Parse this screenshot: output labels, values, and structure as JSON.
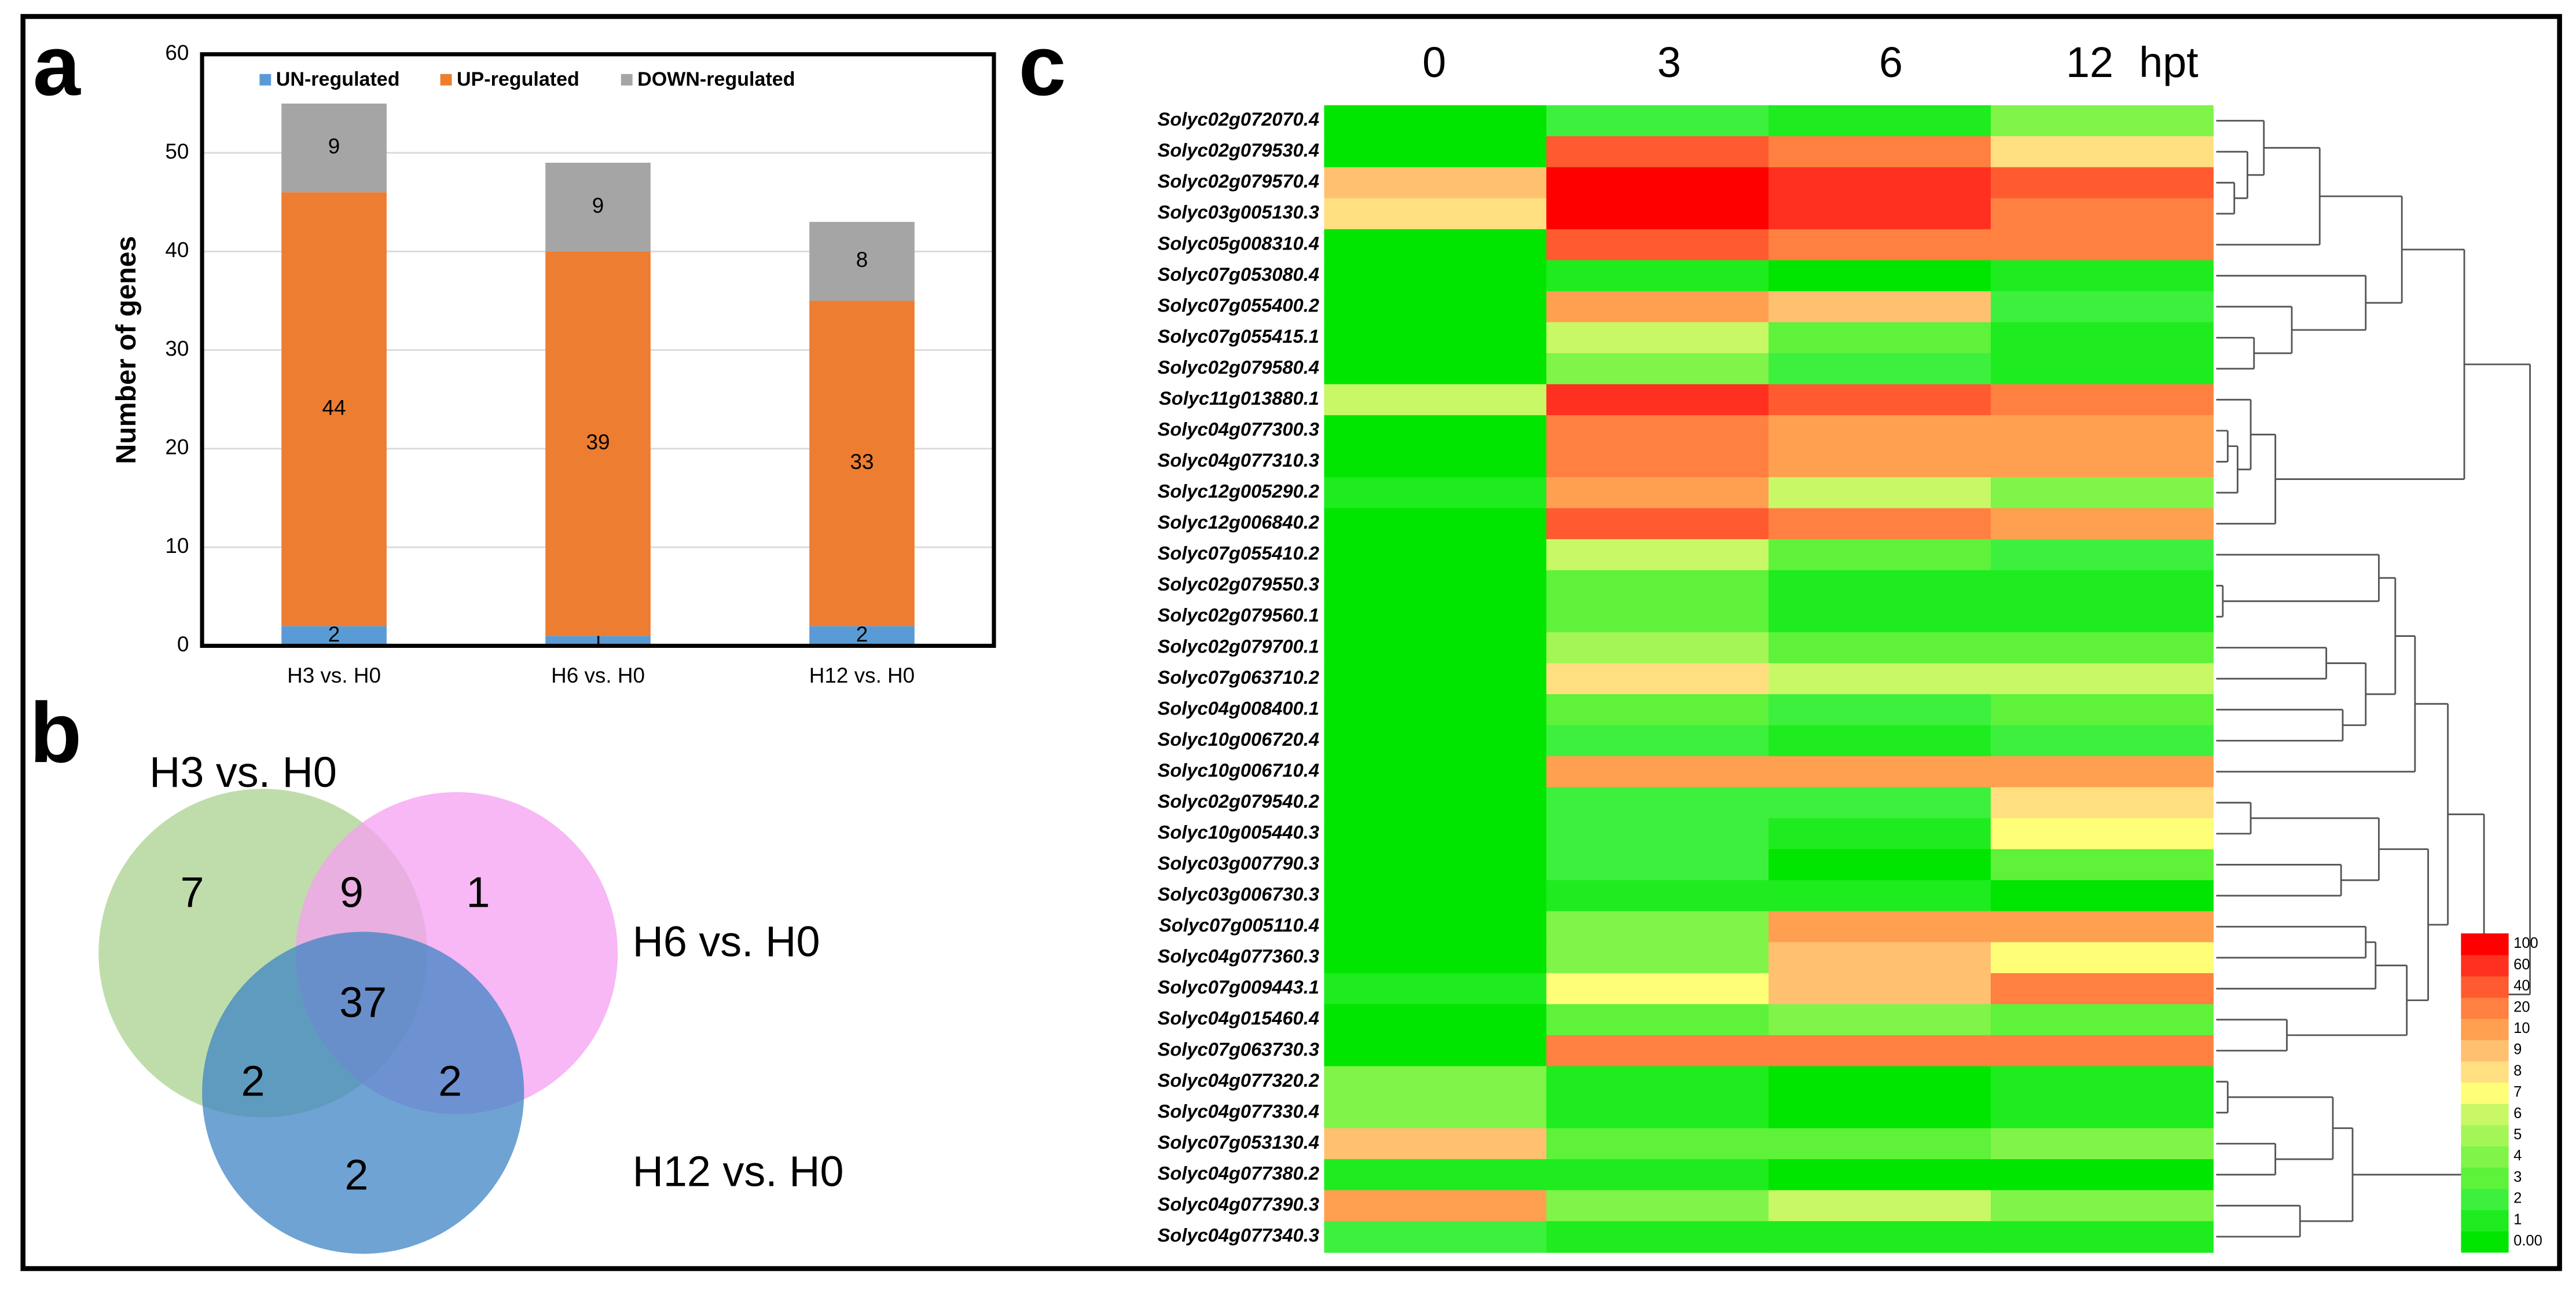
{
  "chart_data": [
    {
      "type": "bar",
      "panel": "a",
      "ylabel": "Number of genes",
      "categories": [
        "H3 vs. H0",
        "H6 vs. H0",
        "H12 vs. H0"
      ],
      "series": [
        {
          "name": "UN-regulated",
          "color": "#5b9bd5",
          "values": [
            2,
            1,
            2
          ]
        },
        {
          "name": "UP-regulated",
          "color": "#ed7d31",
          "values": [
            44,
            39,
            33
          ]
        },
        {
          "name": "DOWN-regulated",
          "color": "#a5a5a5",
          "values": [
            9,
            9,
            8
          ]
        }
      ],
      "ylim": [
        0,
        60
      ],
      "yticks": [
        0,
        10,
        20,
        30,
        40,
        50,
        60
      ],
      "grid": true,
      "stacked": true
    },
    {
      "type": "venn",
      "panel": "b",
      "sets": [
        {
          "name": "H3 vs. H0",
          "color": "#a9d18e"
        },
        {
          "name": "H6 vs. H0",
          "color": "#f59ff2"
        },
        {
          "name": "H12 vs. H0",
          "color": "#3f84c4"
        }
      ],
      "regions": [
        {
          "sets": [
            0
          ],
          "value": 7
        },
        {
          "sets": [
            1
          ],
          "value": 1
        },
        {
          "sets": [
            2
          ],
          "value": 2
        },
        {
          "sets": [
            0,
            1
          ],
          "value": 9
        },
        {
          "sets": [
            0,
            2
          ],
          "value": 2
        },
        {
          "sets": [
            1,
            2
          ],
          "value": 2
        },
        {
          "sets": [
            0,
            1,
            2
          ],
          "value": 37
        }
      ]
    },
    {
      "type": "heatmap",
      "panel": "c",
      "columns": [
        "0",
        "3",
        "6",
        "12"
      ],
      "column_unit": "hpt",
      "rows": [
        "Solyc02g072070.4",
        "Solyc02g079530.4",
        "Solyc02g079570.4",
        "Solyc03g005130.3",
        "Solyc05g008310.4",
        "Solyc07g053080.4",
        "Solyc07g055400.2",
        "Solyc07g055415.1",
        "Solyc02g079580.4",
        "Solyc11g013880.1",
        "Solyc04g077300.3",
        "Solyc04g077310.3",
        "Solyc12g005290.2",
        "Solyc12g006840.2",
        "Solyc07g055410.2",
        "Solyc02g079550.3",
        "Solyc02g079560.1",
        "Solyc02g079700.1",
        "Solyc07g063710.2",
        "Solyc04g008400.1",
        "Solyc10g006720.4",
        "Solyc10g006710.4",
        "Solyc02g079540.2",
        "Solyc10g005440.3",
        "Solyc03g007790.3",
        "Solyc03g006730.3",
        "Solyc07g005110.4",
        "Solyc04g077360.3",
        "Solyc07g009443.1",
        "Solyc04g015460.4",
        "Solyc07g063730.3",
        "Solyc04g077320.2",
        "Solyc04g077330.4",
        "Solyc07g053130.4",
        "Solyc04g077380.2",
        "Solyc04g077390.3",
        "Solyc04g077340.3"
      ],
      "values": [
        [
          0,
          2,
          1,
          4
        ],
        [
          0,
          40,
          20,
          8
        ],
        [
          9,
          100,
          60,
          40
        ],
        [
          8,
          100,
          60,
          20
        ],
        [
          0,
          40,
          20,
          20
        ],
        [
          0,
          1,
          0,
          1
        ],
        [
          0,
          10,
          9,
          2
        ],
        [
          0,
          6,
          3,
          1
        ],
        [
          0,
          4,
          2,
          1
        ],
        [
          6,
          60,
          40,
          20
        ],
        [
          0,
          20,
          10,
          10
        ],
        [
          0,
          20,
          10,
          10
        ],
        [
          1,
          10,
          6,
          4
        ],
        [
          0,
          40,
          20,
          10
        ],
        [
          0,
          6,
          3,
          2
        ],
        [
          0,
          3,
          1,
          1
        ],
        [
          0,
          3,
          1,
          1
        ],
        [
          0,
          5,
          3,
          3
        ],
        [
          0,
          8,
          6,
          6
        ],
        [
          0,
          3,
          2,
          3
        ],
        [
          0,
          2,
          1,
          2
        ],
        [
          0,
          10,
          10,
          10
        ],
        [
          0,
          2,
          2,
          8
        ],
        [
          0,
          2,
          1,
          7
        ],
        [
          0,
          2,
          0,
          3
        ],
        [
          0,
          1,
          1,
          0
        ],
        [
          0,
          4,
          10,
          10
        ],
        [
          0,
          4,
          9,
          7
        ],
        [
          1,
          7,
          9,
          20
        ],
        [
          0,
          3,
          4,
          3
        ],
        [
          0,
          20,
          20,
          20
        ],
        [
          4,
          1,
          0,
          1
        ],
        [
          4,
          1,
          0,
          1
        ],
        [
          9,
          3,
          3,
          4
        ],
        [
          1,
          1,
          0,
          0
        ],
        [
          10,
          4,
          6,
          4
        ],
        [
          2,
          1,
          1,
          1
        ]
      ],
      "colorbar_ticks": [
        {
          "value": 0,
          "label": "0.00"
        },
        1,
        2,
        3,
        4,
        5,
        6,
        7,
        8,
        9,
        10,
        20,
        40,
        60,
        100
      ],
      "colorbar_colors": [
        "#00e600",
        "#1eec1e",
        "#3ef03e",
        "#5ef23a",
        "#80f448",
        "#a4f656",
        "#c8f866",
        "#ffff77",
        "#ffdf80",
        "#ffc070",
        "#ffa050",
        "#ff8040",
        "#ff5a30",
        "#ff3020",
        "#ff0000"
      ]
    }
  ]
}
